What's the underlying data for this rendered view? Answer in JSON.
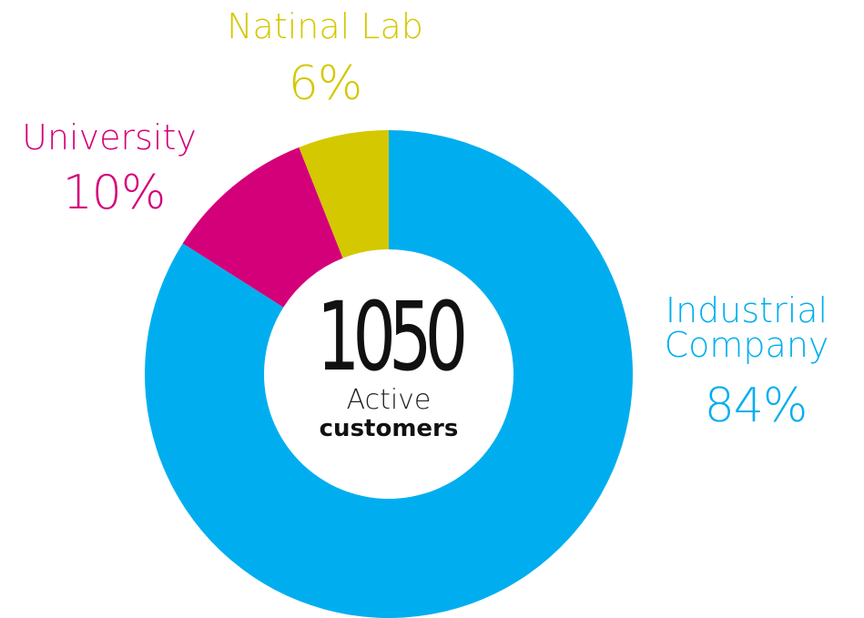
{
  "chart_data": {
    "type": "pie",
    "donut": true,
    "categories": [
      "Industrial Company",
      "University",
      "Natinal Lab"
    ],
    "values": [
      84,
      10,
      6
    ],
    "value_labels": [
      "84%",
      "10%",
      "6%"
    ],
    "colors": [
      "#00aeef",
      "#d4007a",
      "#d4c800"
    ],
    "center_value": 1050,
    "center_label": "Active",
    "center_sublabel": "customers"
  }
}
